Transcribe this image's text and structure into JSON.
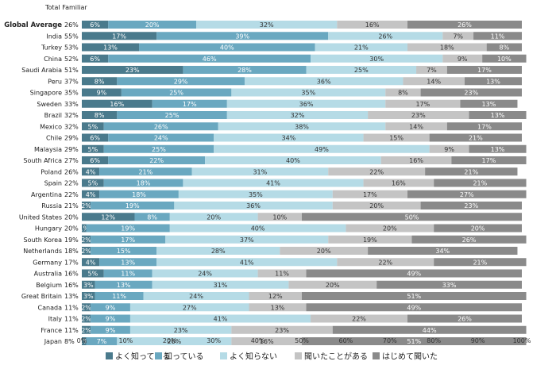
{
  "chart_data": {
    "type": "bar",
    "orientation": "horizontal",
    "stacked": "100%",
    "header_label": "Total Familiar",
    "legend_position": "bottom",
    "grid": false,
    "xlim": [
      0,
      100
    ],
    "x_ticks": [
      "0%",
      "10%",
      "20%",
      "30%",
      "40%",
      "50%",
      "60%",
      "70%",
      "80%",
      "90%",
      "100%"
    ],
    "series": [
      {
        "name": "よく知っている",
        "color": "#4a7a8c"
      },
      {
        "name": "知っている",
        "color": "#6aa8c0"
      },
      {
        "name": "よく知らない",
        "color": "#b5dbe6"
      },
      {
        "name": "聞いたことがある",
        "color": "#c4c4c4"
      },
      {
        "name": "はじめて聞いた",
        "color": "#8a8a8a"
      }
    ],
    "rows": [
      {
        "country": "Global Average",
        "familiar": "26%",
        "values": [
          6,
          20,
          32,
          16,
          26
        ],
        "bold": true
      },
      {
        "country": "India",
        "familiar": "55%",
        "values": [
          17,
          39,
          26,
          7,
          11
        ]
      },
      {
        "country": "Turkey",
        "familiar": "53%",
        "values": [
          13,
          40,
          21,
          18,
          8
        ]
      },
      {
        "country": "China",
        "familiar": "52%",
        "values": [
          6,
          46,
          30,
          9,
          10
        ]
      },
      {
        "country": "Saudi Arabia",
        "familiar": "51%",
        "values": [
          23,
          28,
          25,
          7,
          17
        ]
      },
      {
        "country": "Peru",
        "familiar": "37%",
        "values": [
          8,
          29,
          36,
          14,
          13
        ]
      },
      {
        "country": "Singapore",
        "familiar": "35%",
        "values": [
          9,
          25,
          35,
          8,
          23
        ]
      },
      {
        "country": "Sweden",
        "familiar": "33%",
        "values": [
          16,
          17,
          36,
          17,
          13
        ]
      },
      {
        "country": "Brazil",
        "familiar": "32%",
        "values": [
          8,
          25,
          32,
          23,
          13
        ]
      },
      {
        "country": "Mexico",
        "familiar": "32%",
        "values": [
          5,
          26,
          38,
          14,
          17
        ]
      },
      {
        "country": "Chile",
        "familiar": "29%",
        "values": [
          6,
          24,
          34,
          15,
          21
        ]
      },
      {
        "country": "Malaysia",
        "familiar": "29%",
        "values": [
          5,
          25,
          49,
          9,
          13
        ]
      },
      {
        "country": "South Africa",
        "familiar": "27%",
        "values": [
          6,
          22,
          40,
          16,
          17
        ]
      },
      {
        "country": "Poland",
        "familiar": "26%",
        "values": [
          4,
          21,
          31,
          22,
          21
        ]
      },
      {
        "country": "Spain",
        "familiar": "22%",
        "values": [
          5,
          18,
          41,
          16,
          21
        ]
      },
      {
        "country": "Argentina",
        "familiar": "22%",
        "values": [
          4,
          18,
          35,
          17,
          27
        ]
      },
      {
        "country": "Russia",
        "familiar": "21%",
        "values": [
          2,
          19,
          36,
          20,
          23
        ]
      },
      {
        "country": "United States",
        "familiar": "20%",
        "values": [
          12,
          8,
          20,
          10,
          50
        ]
      },
      {
        "country": "Hungary",
        "familiar": "20%",
        "values": [
          1,
          19,
          40,
          20,
          20
        ]
      },
      {
        "country": "South Korea",
        "familiar": "19%",
        "values": [
          2,
          17,
          37,
          19,
          26
        ]
      },
      {
        "country": "Netherlands",
        "familiar": "18%",
        "values": [
          2,
          15,
          28,
          20,
          34
        ]
      },
      {
        "country": "Germany",
        "familiar": "17%",
        "values": [
          4,
          13,
          41,
          22,
          21
        ]
      },
      {
        "country": "Australia",
        "familiar": "16%",
        "values": [
          5,
          11,
          24,
          11,
          49
        ]
      },
      {
        "country": "Belgium",
        "familiar": "16%",
        "values": [
          3,
          13,
          31,
          20,
          33
        ]
      },
      {
        "country": "Great Britain",
        "familiar": "13%",
        "values": [
          3,
          11,
          24,
          12,
          51
        ]
      },
      {
        "country": "Canada",
        "familiar": "11%",
        "values": [
          2,
          9,
          27,
          13,
          49
        ]
      },
      {
        "country": "Italy",
        "familiar": "11%",
        "values": [
          2,
          9,
          41,
          22,
          26
        ]
      },
      {
        "country": "France",
        "familiar": "11%",
        "values": [
          2,
          9,
          23,
          23,
          44
        ]
      },
      {
        "country": "Japan",
        "familiar": "8%",
        "values": [
          1,
          7,
          26,
          16,
          51
        ]
      }
    ]
  }
}
